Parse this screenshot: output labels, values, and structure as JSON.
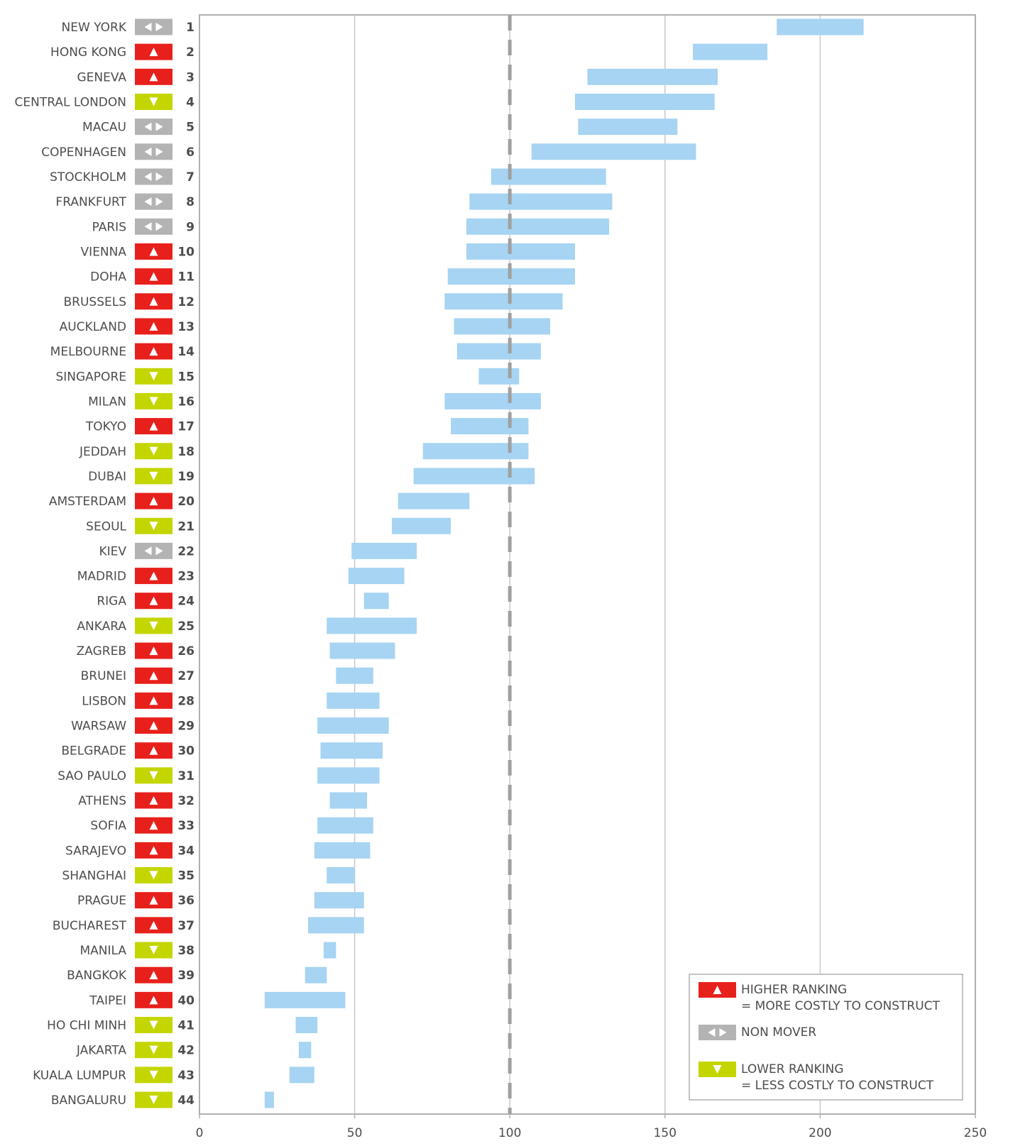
{
  "chart_data": {
    "type": "floating-bar",
    "categories": [
      "NEW YORK",
      "HONG KONG",
      "GENEVA",
      "CENTRAL LONDON",
      "MACAU",
      "COPENHAGEN",
      "STOCKHOLM",
      "FRANKFURT",
      "PARIS",
      "VIENNA",
      "DOHA",
      "BRUSSELS",
      "AUCKLAND",
      "MELBOURNE",
      "SINGAPORE",
      "MILAN",
      "TOKYO",
      "JEDDAH",
      "DUBAI",
      "AMSTERDAM",
      "SEOUL",
      "KIEV",
      "MADRID",
      "RIGA",
      "ANKARA",
      "ZAGREB",
      "BRUNEI",
      "LISBON",
      "WARSAW",
      "BELGRADE",
      "SAO PAULO",
      "ATHENS",
      "SOFIA",
      "SARAJEVO",
      "SHANGHAI",
      "PRAGUE",
      "BUCHAREST",
      "MANILA",
      "BANGKOK",
      "TAIPEI",
      "HO CHI MINH",
      "JAKARTA",
      "KUALA LUMPUR",
      "BANGALURU"
    ],
    "ranks": [
      1,
      2,
      3,
      4,
      5,
      6,
      7,
      8,
      9,
      10,
      11,
      12,
      13,
      14,
      15,
      16,
      17,
      18,
      19,
      20,
      21,
      22,
      23,
      24,
      25,
      26,
      27,
      28,
      29,
      30,
      31,
      32,
      33,
      34,
      35,
      36,
      37,
      38,
      39,
      40,
      41,
      42,
      43,
      44
    ],
    "movement": [
      "same",
      "up",
      "up",
      "down",
      "same",
      "same",
      "same",
      "same",
      "same",
      "up",
      "up",
      "up",
      "up",
      "up",
      "down",
      "down",
      "up",
      "down",
      "down",
      "up",
      "down",
      "same",
      "up",
      "up",
      "down",
      "up",
      "up",
      "up",
      "up",
      "up",
      "down",
      "up",
      "up",
      "up",
      "down",
      "up",
      "up",
      "down",
      "up",
      "up",
      "down",
      "down",
      "down",
      "down"
    ],
    "low": [
      186,
      159,
      125,
      121,
      122,
      107,
      94,
      87,
      86,
      86,
      80,
      79,
      82,
      83,
      90,
      79,
      81,
      72,
      69,
      64,
      62,
      49,
      48,
      53,
      41,
      42,
      44,
      41,
      38,
      39,
      38,
      42,
      38,
      37,
      41,
      37,
      35,
      40,
      34,
      21,
      31,
      32,
      29,
      21
    ],
    "high": [
      214,
      183,
      167,
      166,
      154,
      160,
      131,
      133,
      132,
      121,
      121,
      117,
      113,
      110,
      103,
      110,
      106,
      106,
      108,
      87,
      81,
      70,
      66,
      61,
      70,
      63,
      56,
      58,
      61,
      59,
      58,
      54,
      56,
      55,
      50,
      53,
      53,
      44,
      41,
      47,
      38,
      36,
      37,
      24
    ],
    "color": "#a6d4f2",
    "xlim": [
      0,
      250
    ],
    "xticks": [
      0,
      50,
      100,
      150,
      200,
      250
    ],
    "grid": true,
    "reference_line": 100,
    "legend": [
      {
        "movement": "up",
        "color": "#e8201c",
        "lines": [
          "HIGHER RANKING",
          "= MORE COSTLY TO CONSTRUCT"
        ]
      },
      {
        "movement": "same",
        "color": "#b3b3b3",
        "lines": [
          "NON MOVER"
        ]
      },
      {
        "movement": "down",
        "color": "#c4d600",
        "lines": [
          "LOWER RANKING",
          "= LESS COSTLY TO CONSTRUCT"
        ]
      }
    ],
    "legend_position": "lower right"
  }
}
